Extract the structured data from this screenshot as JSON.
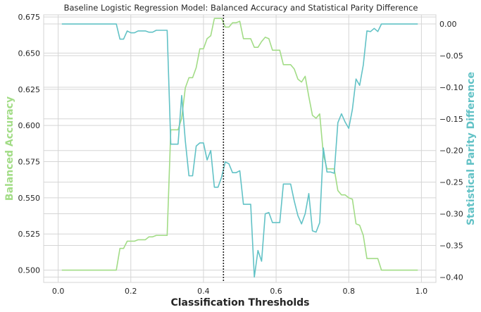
{
  "chart_data": {
    "type": "line",
    "title": "Baseline Logistic Regression Model: Balanced Accuracy and Statistical Parity Difference",
    "xlabel": "Classification Thresholds",
    "ylabel_left": "Balanced Accuracy",
    "ylabel_right": "Statistical Parity Difference",
    "xlim": [
      -0.04,
      1.04
    ],
    "ylim_left": [
      0.4915,
      0.6765
    ],
    "ylim_right": [
      -0.4085,
      0.0145
    ],
    "xticks": [
      "0.0",
      "0.2",
      "0.4",
      "0.6",
      "0.8",
      "1.0"
    ],
    "xtick_values": [
      0,
      0.2,
      0.4,
      0.6,
      0.8,
      1.0
    ],
    "yticks_left": [
      "0.500",
      "0.525",
      "0.550",
      "0.575",
      "0.600",
      "0.625",
      "0.650",
      "0.675"
    ],
    "ytick_values_left": [
      0.5,
      0.525,
      0.55,
      0.575,
      0.6,
      0.625,
      0.65,
      0.675
    ],
    "yticks_right": [
      "−0.40",
      "−0.35",
      "−0.30",
      "−0.25",
      "−0.20",
      "−0.15",
      "−0.10",
      "−0.05",
      "0.00"
    ],
    "ytick_values_right": [
      -0.4,
      -0.35,
      -0.3,
      -0.25,
      -0.2,
      -0.15,
      -0.1,
      -0.05,
      0.0
    ],
    "grid": true,
    "threshold_marker": 0.455,
    "colors": {
      "balanced_accuracy": "#a2dc86",
      "statistical_parity": "#62c2c6",
      "marker": "#262626",
      "grid": "#d5d5d5",
      "spine": "#d5d5d5"
    },
    "series": [
      {
        "axis": "left",
        "x": [
          0.01,
          0.16,
          0.17,
          0.18,
          0.19,
          0.2,
          0.21,
          0.22,
          0.23,
          0.24,
          0.25,
          0.26,
          0.27,
          0.28,
          0.29,
          0.3,
          0.31,
          0.32,
          0.33,
          0.34,
          0.35,
          0.36,
          0.37,
          0.38,
          0.39,
          0.4,
          0.41,
          0.42,
          0.43,
          0.44,
          0.45,
          0.46,
          0.47,
          0.48,
          0.49,
          0.5,
          0.51,
          0.52,
          0.53,
          0.54,
          0.55,
          0.56,
          0.57,
          0.58,
          0.59,
          0.6,
          0.61,
          0.62,
          0.63,
          0.64,
          0.65,
          0.66,
          0.67,
          0.68,
          0.69,
          0.7,
          0.71,
          0.72,
          0.73,
          0.74,
          0.75,
          0.76,
          0.77,
          0.78,
          0.79,
          0.8,
          0.81,
          0.82,
          0.83,
          0.84,
          0.85,
          0.86,
          0.87,
          0.88,
          0.89,
          0.99
        ],
        "y": [
          0.5,
          0.5,
          0.515,
          0.515,
          0.52,
          0.52,
          0.52,
          0.521,
          0.521,
          0.521,
          0.523,
          0.523,
          0.524,
          0.524,
          0.524,
          0.524,
          0.597,
          0.597,
          0.597,
          0.605,
          0.626,
          0.633,
          0.633,
          0.64,
          0.653,
          0.653,
          0.66,
          0.662,
          0.674,
          0.674,
          0.674,
          0.668,
          0.668,
          0.671,
          0.671,
          0.672,
          0.66,
          0.66,
          0.66,
          0.654,
          0.654,
          0.658,
          0.661,
          0.66,
          0.652,
          0.652,
          0.652,
          0.642,
          0.642,
          0.642,
          0.639,
          0.632,
          0.63,
          0.634,
          0.62,
          0.607,
          0.605,
          0.608,
          0.58,
          0.57,
          0.57,
          0.57,
          0.555,
          0.552,
          0.552,
          0.55,
          0.549,
          0.532,
          0.531,
          0.524,
          0.508,
          0.508,
          0.508,
          0.508,
          0.5,
          0.5
        ]
      },
      {
        "axis": "right",
        "x": [
          0.01,
          0.16,
          0.17,
          0.18,
          0.19,
          0.2,
          0.21,
          0.22,
          0.23,
          0.24,
          0.25,
          0.26,
          0.27,
          0.28,
          0.29,
          0.3,
          0.31,
          0.32,
          0.33,
          0.34,
          0.35,
          0.36,
          0.37,
          0.38,
          0.39,
          0.4,
          0.41,
          0.42,
          0.43,
          0.44,
          0.45,
          0.46,
          0.47,
          0.48,
          0.49,
          0.5,
          0.51,
          0.52,
          0.53,
          0.54,
          0.55,
          0.56,
          0.57,
          0.58,
          0.59,
          0.6,
          0.61,
          0.62,
          0.63,
          0.64,
          0.65,
          0.66,
          0.67,
          0.68,
          0.69,
          0.7,
          0.71,
          0.72,
          0.73,
          0.74,
          0.75,
          0.76,
          0.77,
          0.78,
          0.79,
          0.8,
          0.81,
          0.82,
          0.83,
          0.84,
          0.85,
          0.86,
          0.87,
          0.88,
          0.89,
          0.99
        ],
        "y": [
          0.0,
          0.0,
          -0.024,
          -0.024,
          -0.011,
          -0.014,
          -0.014,
          -0.011,
          -0.011,
          -0.011,
          -0.013,
          -0.013,
          -0.01,
          -0.01,
          -0.01,
          -0.01,
          -0.19,
          -0.19,
          -0.19,
          -0.113,
          -0.185,
          -0.24,
          -0.24,
          -0.193,
          -0.188,
          -0.188,
          -0.215,
          -0.2,
          -0.258,
          -0.258,
          -0.242,
          -0.218,
          -0.221,
          -0.235,
          -0.235,
          -0.232,
          -0.285,
          -0.285,
          -0.285,
          -0.4,
          -0.358,
          -0.375,
          -0.3,
          -0.298,
          -0.314,
          -0.314,
          -0.314,
          -0.253,
          -0.253,
          -0.253,
          -0.28,
          -0.303,
          -0.316,
          -0.3,
          -0.268,
          -0.327,
          -0.329,
          -0.314,
          -0.196,
          -0.234,
          -0.234,
          -0.236,
          -0.156,
          -0.142,
          -0.155,
          -0.165,
          -0.135,
          -0.087,
          -0.097,
          -0.065,
          -0.011,
          -0.012,
          -0.007,
          -0.012,
          0.0,
          0.0
        ]
      }
    ]
  }
}
